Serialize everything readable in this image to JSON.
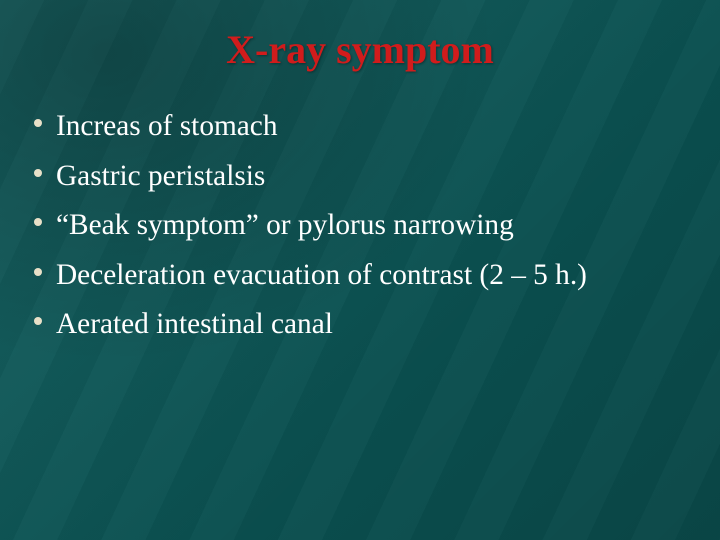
{
  "slide": {
    "background_color": "#0c5b5b",
    "title": {
      "text": "X-ray symptom",
      "color": "#d11c1c",
      "font_size_pt": 30
    },
    "bullet_style": {
      "dot_color": "#e8e0c8",
      "text_color": "#ffffff",
      "font_size_pt": 22
    },
    "bullets": [
      {
        "text": "Increas of stomach"
      },
      {
        "text": "Gastric peristalsis"
      },
      {
        "text": "“Beak symptom” or pylorus narrowing"
      },
      {
        "text": "Deceleration evacuation of contrast (2 – 5 h.)"
      },
      {
        "text": "Aerated intestinal canal"
      }
    ]
  }
}
